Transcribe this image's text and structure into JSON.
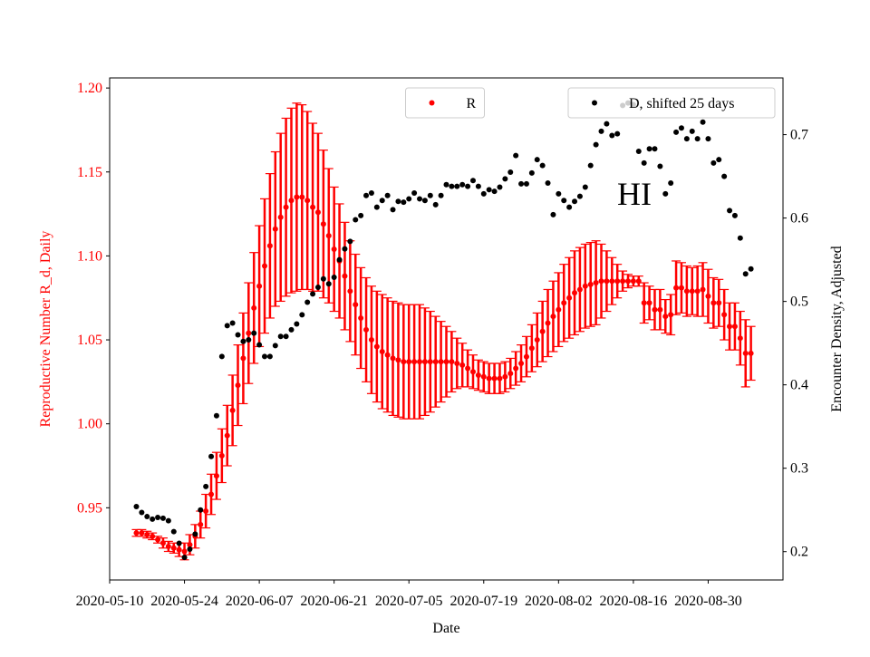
{
  "chart_data": {
    "type": "scatter",
    "xlabel": "Date",
    "ylabel": "Reproductive Number R_d, Daily",
    "ylabel_color": "red",
    "y2label": "Encounter Density, Adjusted",
    "annotation": "HI",
    "xlim": [
      "2020-05-10",
      "2020-09-13"
    ],
    "xticks": [
      "2020-05-10",
      "2020-05-24",
      "2020-06-07",
      "2020-06-21",
      "2020-07-05",
      "2020-07-19",
      "2020-08-02",
      "2020-08-16",
      "2020-08-30"
    ],
    "ylim": [
      0.907,
      1.206
    ],
    "yticks": [
      0.95,
      {
        "value": 1,
        "label": "1.00"
      },
      1.05,
      {
        "value": 1.1,
        "label": "1.10"
      },
      1.15,
      {
        "value": 1.2,
        "label": "1.20"
      }
    ],
    "y2lim": [
      0.166,
      0.768
    ],
    "y2ticks": [
      0.2,
      0.3,
      0.4,
      0.5,
      0.6,
      0.7
    ],
    "x": [
      "2020-05-15",
      "2020-05-16",
      "2020-05-17",
      "2020-05-18",
      "2020-05-19",
      "2020-05-20",
      "2020-05-21",
      "2020-05-22",
      "2020-05-23",
      "2020-05-24",
      "2020-05-25",
      "2020-05-26",
      "2020-05-27",
      "2020-05-28",
      "2020-05-29",
      "2020-05-30",
      "2020-05-31",
      "2020-06-01",
      "2020-06-02",
      "2020-06-03",
      "2020-06-04",
      "2020-06-05",
      "2020-06-06",
      "2020-06-07",
      "2020-06-08",
      "2020-06-09",
      "2020-06-10",
      "2020-06-11",
      "2020-06-12",
      "2020-06-13",
      "2020-06-14",
      "2020-06-15",
      "2020-06-16",
      "2020-06-17",
      "2020-06-18",
      "2020-06-19",
      "2020-06-20",
      "2020-06-21",
      "2020-06-22",
      "2020-06-23",
      "2020-06-24",
      "2020-06-25",
      "2020-06-26",
      "2020-06-27",
      "2020-06-28",
      "2020-06-29",
      "2020-06-30",
      "2020-07-01",
      "2020-07-02",
      "2020-07-03",
      "2020-07-04",
      "2020-07-05",
      "2020-07-06",
      "2020-07-07",
      "2020-07-08",
      "2020-07-09",
      "2020-07-10",
      "2020-07-11",
      "2020-07-12",
      "2020-07-13",
      "2020-07-14",
      "2020-07-15",
      "2020-07-16",
      "2020-07-17",
      "2020-07-18",
      "2020-07-19",
      "2020-07-20",
      "2020-07-21",
      "2020-07-22",
      "2020-07-23",
      "2020-07-24",
      "2020-07-25",
      "2020-07-26",
      "2020-07-27",
      "2020-07-28",
      "2020-07-29",
      "2020-07-30",
      "2020-07-31",
      "2020-08-01",
      "2020-08-02",
      "2020-08-03",
      "2020-08-04",
      "2020-08-05",
      "2020-08-06",
      "2020-08-07",
      "2020-08-08",
      "2020-08-09",
      "2020-08-10",
      "2020-08-11",
      "2020-08-12",
      "2020-08-13",
      "2020-08-14",
      "2020-08-15",
      "2020-08-16",
      "2020-08-17",
      "2020-08-18",
      "2020-08-19",
      "2020-08-20",
      "2020-08-21",
      "2020-08-22",
      "2020-08-23",
      "2020-08-24",
      "2020-08-25",
      "2020-08-26",
      "2020-08-27",
      "2020-08-28",
      "2020-08-29",
      "2020-08-30",
      "2020-08-31",
      "2020-09-01",
      "2020-09-02",
      "2020-09-03",
      "2020-09-04",
      "2020-09-05",
      "2020-09-06",
      "2020-09-07"
    ],
    "series": [
      {
        "name": "R",
        "color": "red",
        "axis": "y",
        "legend": "upper center",
        "values": [
          0.935,
          0.935,
          0.934,
          0.933,
          0.931,
          0.929,
          0.927,
          0.926,
          0.925,
          0.924,
          0.928,
          0.933,
          0.94,
          0.948,
          0.958,
          0.969,
          0.981,
          0.993,
          1.008,
          1.023,
          1.039,
          1.054,
          1.069,
          1.082,
          1.094,
          1.106,
          1.116,
          1.123,
          1.129,
          1.133,
          1.135,
          1.135,
          1.133,
          1.129,
          1.126,
          1.119,
          1.112,
          1.104,
          1.097,
          1.088,
          1.079,
          1.071,
          1.063,
          1.056,
          1.05,
          1.046,
          1.043,
          1.041,
          1.039,
          1.038,
          1.037,
          1.037,
          1.037,
          1.037,
          1.037,
          1.037,
          1.037,
          1.037,
          1.037,
          1.037,
          1.036,
          1.035,
          1.033,
          1.031,
          1.029,
          1.028,
          1.027,
          1.027,
          1.027,
          1.028,
          1.03,
          1.033,
          1.036,
          1.04,
          1.045,
          1.05,
          1.055,
          1.06,
          1.064,
          1.068,
          1.072,
          1.075,
          1.078,
          1.08,
          1.082,
          1.083,
          1.084,
          1.085,
          1.085,
          1.085,
          1.085,
          1.085,
          1.085,
          1.085,
          1.085,
          1.072,
          1.072,
          1.068,
          1.068,
          1.064,
          1.065,
          1.081,
          1.081,
          1.079,
          1.079,
          1.079,
          1.08,
          1.076,
          1.072,
          1.072,
          1.065,
          1.058,
          1.058,
          1.051,
          1.042,
          1.042
        ],
        "errors": [
          0.002,
          0.002,
          0.002,
          0.002,
          0.002,
          0.003,
          0.003,
          0.003,
          0.004,
          0.005,
          0.006,
          0.007,
          0.008,
          0.01,
          0.012,
          0.014,
          0.016,
          0.018,
          0.021,
          0.024,
          0.027,
          0.03,
          0.033,
          0.036,
          0.04,
          0.043,
          0.046,
          0.05,
          0.053,
          0.055,
          0.056,
          0.055,
          0.053,
          0.05,
          0.047,
          0.044,
          0.04,
          0.037,
          0.034,
          0.032,
          0.03,
          0.03,
          0.03,
          0.031,
          0.032,
          0.033,
          0.034,
          0.034,
          0.034,
          0.034,
          0.034,
          0.034,
          0.034,
          0.034,
          0.032,
          0.03,
          0.027,
          0.024,
          0.021,
          0.018,
          0.015,
          0.013,
          0.011,
          0.01,
          0.009,
          0.009,
          0.009,
          0.009,
          0.009,
          0.009,
          0.009,
          0.01,
          0.011,
          0.012,
          0.014,
          0.016,
          0.018,
          0.02,
          0.021,
          0.022,
          0.023,
          0.024,
          0.025,
          0.025,
          0.025,
          0.025,
          0.025,
          0.022,
          0.018,
          0.014,
          0.01,
          0.006,
          0.004,
          0.003,
          0.003,
          0.012,
          0.01,
          0.012,
          0.012,
          0.01,
          0.012,
          0.016,
          0.015,
          0.015,
          0.014,
          0.015,
          0.016,
          0.016,
          0.015,
          0.014,
          0.015,
          0.014,
          0.014,
          0.016,
          0.02,
          0.016
        ]
      },
      {
        "name": "D, shifted 25 days",
        "color": "black",
        "axis": "y2",
        "legend": "upper right",
        "values": [
          0.254,
          0.247,
          0.242,
          0.239,
          0.241,
          0.24,
          0.237,
          0.224,
          0.21,
          0.193,
          0.203,
          0.221,
          0.25,
          0.278,
          0.314,
          0.363,
          0.434,
          0.471,
          0.474,
          0.46,
          0.452,
          0.454,
          0.462,
          0.448,
          0.434,
          0.434,
          0.447,
          0.458,
          0.458,
          0.466,
          0.473,
          0.484,
          0.499,
          0.509,
          0.517,
          0.527,
          0.521,
          0.529,
          0.55,
          0.563,
          0.572,
          0.598,
          0.603,
          0.627,
          0.63,
          0.613,
          0.621,
          0.627,
          0.61,
          0.62,
          0.619,
          0.623,
          0.63,
          0.623,
          0.621,
          0.627,
          0.616,
          0.627,
          0.64,
          0.638,
          0.638,
          0.64,
          0.638,
          0.645,
          0.638,
          0.629,
          0.634,
          0.632,
          0.637,
          0.647,
          0.655,
          0.675,
          0.641,
          0.641,
          0.654,
          0.67,
          0.663,
          0.642,
          0.604,
          0.629,
          0.621,
          0.613,
          0.62,
          0.626,
          0.637,
          0.663,
          0.688,
          0.704,
          0.713,
          0.699,
          0.701,
          0.735,
          0.738,
          0.736,
          0.68,
          0.666,
          0.683,
          0.683,
          0.662,
          0.629,
          0.642,
          0.703,
          0.708,
          0.695,
          0.704,
          0.695,
          0.715,
          0.695,
          0.666,
          0.67,
          0.65,
          0.609,
          0.603,
          0.576,
          0.533,
          0.539
        ]
      }
    ]
  }
}
